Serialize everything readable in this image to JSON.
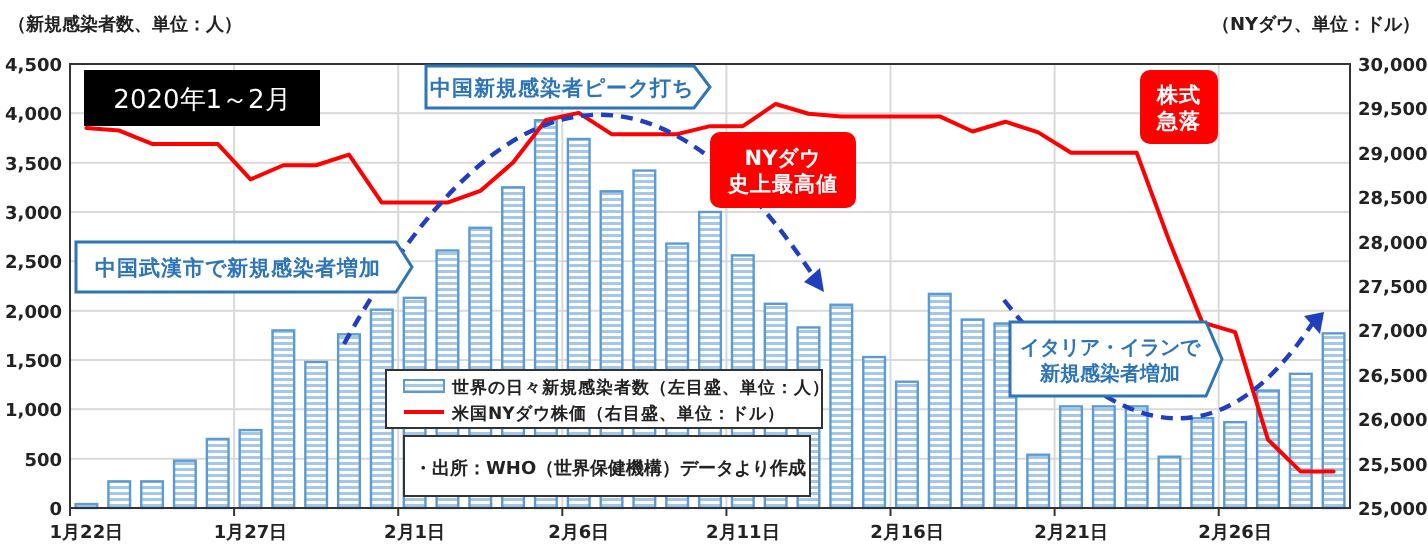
{
  "chart_data": {
    "type": "bar",
    "categories": [
      "1月22日",
      null,
      null,
      null,
      null,
      "1月27日",
      null,
      null,
      null,
      null,
      "2月1日",
      null,
      null,
      null,
      null,
      "2月6日",
      null,
      null,
      null,
      null,
      "2月11日",
      null,
      null,
      null,
      null,
      "2月16日",
      null,
      null,
      null,
      null,
      "2月21日",
      null,
      null,
      null,
      null,
      "2月26日",
      null,
      null,
      null
    ],
    "series": [
      {
        "name": "世界の日々新規感染者数（左目盛、単位：人）",
        "color": "#5b9bd5",
        "values": [
          40,
          270,
          270,
          480,
          700,
          790,
          1800,
          1480,
          1760,
          2010,
          2130,
          2610,
          2840,
          3250,
          3930,
          3740,
          3210,
          3420,
          2680,
          3000,
          2560,
          2070,
          1830,
          2060,
          1530,
          1280,
          2170,
          1910,
          1870,
          540,
          1030,
          1030,
          1030,
          520,
          910,
          870,
          1190,
          1360,
          1770
        ]
      },
      {
        "name": "米国NYダウ株価（右目盛、単位：ドル）",
        "type": "line",
        "axis": "y2",
        "color": "#ff0000",
        "values": [
          29280,
          29250,
          29100,
          29100,
          29100,
          28700,
          28860,
          28860,
          28980,
          28440,
          28440,
          28440,
          28570,
          28890,
          29370,
          29450,
          29210,
          29210,
          29210,
          29300,
          29300,
          29550,
          29440,
          29410,
          29410,
          29410,
          29410,
          29240,
          29350,
          29230,
          29000,
          29000,
          29000,
          28000,
          27090,
          26980,
          25770,
          25410,
          25410
        ]
      }
    ],
    "ylabel": "（新規感染者数、単位：人）",
    "y2label": "（NYダウ、単位：ドル）",
    "ylim": [
      0,
      4500
    ],
    "yticks": [
      0,
      500,
      {
        "value": 1000,
        "label": "1,000"
      },
      {
        "value": 1500,
        "label": "1,500"
      },
      {
        "value": 2000,
        "label": "2,000"
      },
      {
        "value": 2500,
        "label": "2,500"
      },
      {
        "value": 3000,
        "label": "3,000"
      },
      {
        "value": 3500,
        "label": "3,500"
      },
      {
        "value": 4000,
        "label": "4,000"
      },
      {
        "value": 4500,
        "label": "4,500"
      }
    ],
    "y2lim": [
      25000,
      30000
    ],
    "y2ticks": [
      {
        "value": 25000,
        "label": "25,000"
      },
      {
        "value": 25500,
        "label": "25,500"
      },
      {
        "value": 26000,
        "label": "26,000"
      },
      {
        "value": 26500,
        "label": "26,500"
      },
      {
        "value": 27000,
        "label": "27,000"
      },
      {
        "value": 27500,
        "label": "27,500"
      },
      {
        "value": 28000,
        "label": "28,000"
      },
      {
        "value": 28500,
        "label": "28,500"
      },
      {
        "value": 29000,
        "label": "29,000"
      },
      {
        "value": 29500,
        "label": "29,500"
      },
      {
        "value": 30000,
        "label": "30,000"
      }
    ],
    "grid": true,
    "legend": "bottom",
    "marker": "none",
    "line_style": "solid",
    "annotations": [
      "2020年1～2月",
      "中国新規感染者ピーク打ち",
      "中国武漢市で新規感染者増加",
      "NYダウ",
      "史上最高値",
      "株式",
      "急落",
      "イタリア・イランで",
      "新規感染者増加",
      "・出所：WHO（世界保健機構）データより作成"
    ]
  }
}
